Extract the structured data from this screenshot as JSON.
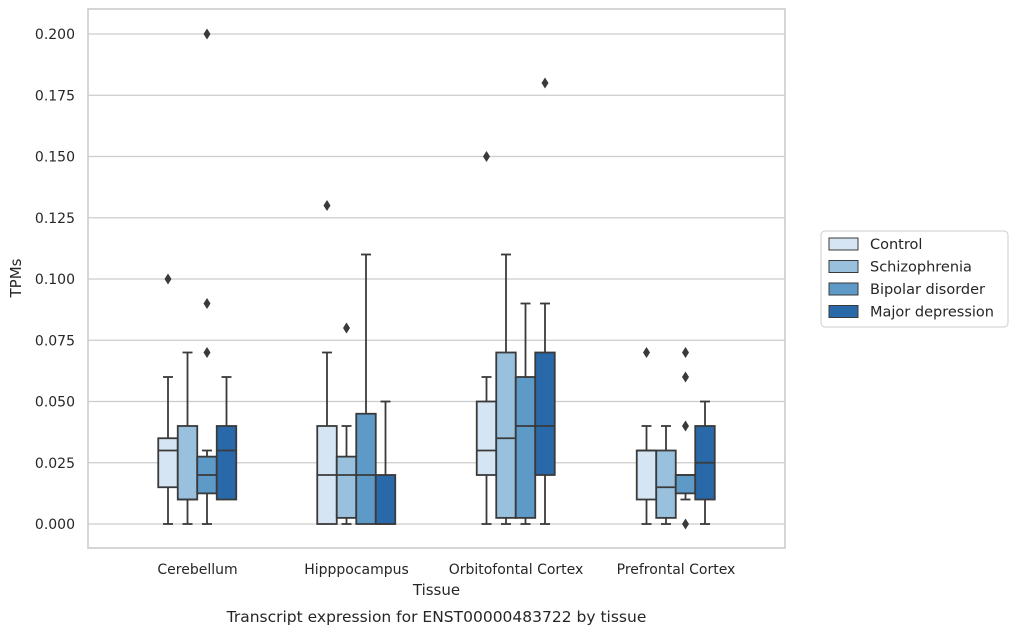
{
  "chart_data": {
    "type": "box",
    "title": "",
    "caption": "Transcript expression for ENST00000483722 by tissue",
    "xlabel": "Tissue",
    "ylabel": "TPMs",
    "ylim": [
      -0.01,
      0.21
    ],
    "yticks": [
      "0.000",
      "0.025",
      "0.050",
      "0.075",
      "0.100",
      "0.125",
      "0.150",
      "0.175",
      "0.200"
    ],
    "grid": "horizontal",
    "legend_position": "right-center",
    "categories": [
      "Cerebellum",
      "Hipppocampus",
      "Orbitofontal Cortex",
      "Prefrontal Cortex"
    ],
    "series": [
      {
        "name": "Control",
        "color": "#d6e5f3",
        "boxes": [
          {
            "whisker_low": 0.0,
            "q1": 0.015,
            "median": 0.03,
            "q3": 0.035,
            "whisker_high": 0.06,
            "outliers": [
              0.1
            ]
          },
          {
            "whisker_low": 0.0,
            "q1": 0.0,
            "median": 0.02,
            "q3": 0.04,
            "whisker_high": 0.07,
            "outliers": [
              0.13
            ]
          },
          {
            "whisker_low": 0.0,
            "q1": 0.02,
            "median": 0.03,
            "q3": 0.05,
            "whisker_high": 0.06,
            "outliers": [
              0.15
            ]
          },
          {
            "whisker_low": 0.0,
            "q1": 0.01,
            "median": 0.03,
            "q3": 0.03,
            "whisker_high": 0.04,
            "outliers": [
              0.07
            ]
          }
        ]
      },
      {
        "name": "Schizophrenia",
        "color": "#99c1dd",
        "boxes": [
          {
            "whisker_low": 0.0,
            "q1": 0.01,
            "median": 0.01,
            "q3": 0.04,
            "whisker_high": 0.07,
            "outliers": []
          },
          {
            "whisker_low": 0.0,
            "q1": 0.0025,
            "median": 0.02,
            "q3": 0.0275,
            "whisker_high": 0.04,
            "outliers": [
              0.08
            ]
          },
          {
            "whisker_low": 0.0,
            "q1": 0.0025,
            "median": 0.035,
            "q3": 0.07,
            "whisker_high": 0.11,
            "outliers": []
          },
          {
            "whisker_low": 0.0,
            "q1": 0.0025,
            "median": 0.015,
            "q3": 0.03,
            "whisker_high": 0.04,
            "outliers": []
          }
        ]
      },
      {
        "name": "Bipolar disorder",
        "color": "#5d9ac8",
        "boxes": [
          {
            "whisker_low": 0.0,
            "q1": 0.0125,
            "median": 0.02,
            "q3": 0.0275,
            "whisker_high": 0.03,
            "outliers": [
              0.07,
              0.09,
              0.2
            ]
          },
          {
            "whisker_low": 0.0,
            "q1": 0.0,
            "median": 0.02,
            "q3": 0.045,
            "whisker_high": 0.11,
            "outliers": []
          },
          {
            "whisker_low": 0.0,
            "q1": 0.0025,
            "median": 0.04,
            "q3": 0.06,
            "whisker_high": 0.09,
            "outliers": []
          },
          {
            "whisker_low": 0.01,
            "q1": 0.0125,
            "median": 0.02,
            "q3": 0.02,
            "whisker_high": 0.02,
            "outliers": [
              0.0,
              0.04,
              0.06,
              0.07
            ]
          }
        ]
      },
      {
        "name": "Major depression",
        "color": "#2a69a9",
        "boxes": [
          {
            "whisker_low": 0.01,
            "q1": 0.01,
            "median": 0.03,
            "q3": 0.04,
            "whisker_high": 0.06,
            "outliers": []
          },
          {
            "whisker_low": 0.0,
            "q1": 0.0,
            "median": 0.0,
            "q3": 0.02,
            "whisker_high": 0.05,
            "outliers": []
          },
          {
            "whisker_low": 0.0,
            "q1": 0.02,
            "median": 0.04,
            "q3": 0.07,
            "whisker_high": 0.09,
            "outliers": [
              0.18
            ]
          },
          {
            "whisker_low": 0.0,
            "q1": 0.01,
            "median": 0.025,
            "q3": 0.04,
            "whisker_high": 0.05,
            "outliers": []
          }
        ]
      }
    ]
  }
}
